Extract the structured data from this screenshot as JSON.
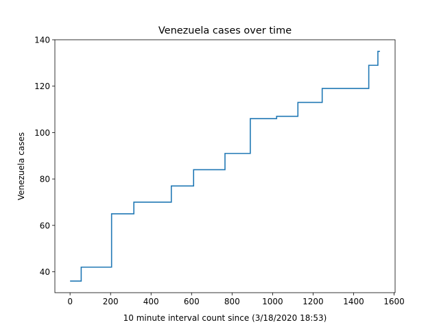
{
  "chart_data": {
    "type": "line",
    "title": "Venezuela cases over time",
    "xlabel": "10 minute interval count since (3/18/2020 18:53)",
    "ylabel": "Venezuela cases",
    "xlim": [
      -75,
      1605
    ],
    "ylim": [
      31,
      140
    ],
    "x_ticks": [
      0,
      200,
      400,
      600,
      800,
      1000,
      1200,
      1400,
      1600
    ],
    "y_ticks": [
      40,
      60,
      80,
      100,
      120,
      140
    ],
    "grid": false,
    "legend": "none",
    "step": "post",
    "series": [
      {
        "color": "#1f77b4",
        "points": [
          [
            0,
            36
          ],
          [
            55,
            42
          ],
          [
            205,
            65
          ],
          [
            315,
            70
          ],
          [
            500,
            77
          ],
          [
            610,
            84
          ],
          [
            765,
            91
          ],
          [
            890,
            106
          ],
          [
            1020,
            107
          ],
          [
            1125,
            113
          ],
          [
            1245,
            119
          ],
          [
            1475,
            129
          ],
          [
            1520,
            135
          ],
          [
            1530,
            135
          ]
        ]
      }
    ]
  }
}
